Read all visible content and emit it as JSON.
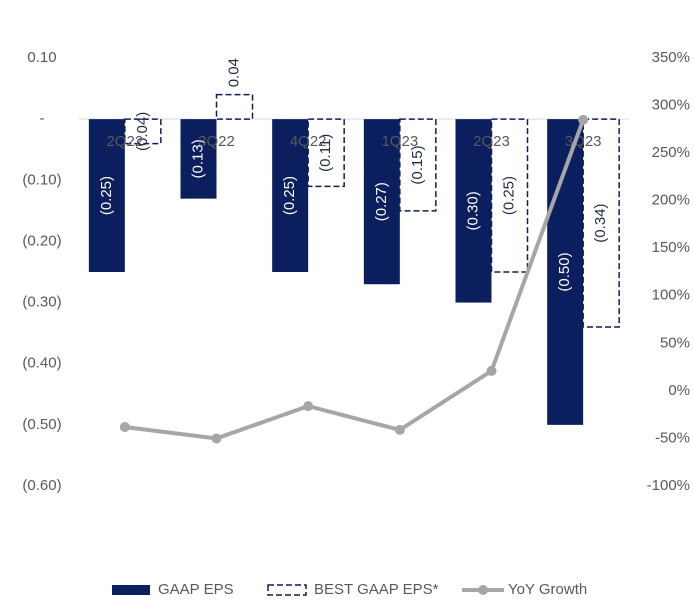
{
  "chart_data": {
    "type": "bar",
    "categories": [
      "2Q22",
      "3Q22",
      "4Q22",
      "1Q23",
      "2Q23",
      "3Q23"
    ],
    "series": [
      {
        "name": "GAAP EPS",
        "color": "#0b1f5e",
        "values": [
          -0.25,
          -0.13,
          -0.25,
          -0.27,
          -0.3,
          -0.5
        ],
        "value_labels": [
          "(0.25)",
          "(0.13)",
          "(0.25)",
          "(0.27)",
          "(0.30)",
          "(0.50)"
        ]
      },
      {
        "name": "BEST GAAP EPS*",
        "color": "#0b1f5e",
        "style": "dashed",
        "values": [
          -0.04,
          0.04,
          -0.11,
          -0.15,
          -0.25,
          -0.34
        ],
        "value_labels": [
          "(0.04)",
          "0.04",
          "(0.11)",
          "(0.15)",
          "(0.25)",
          "(0.34)"
        ]
      },
      {
        "name": "YoY Growth",
        "color": "#a6a6a6",
        "type": "line",
        "axis": "y2",
        "values": [
          -38,
          -50,
          -16,
          -41,
          21,
          285
        ]
      }
    ],
    "ylim": [
      -0.6,
      0.1
    ],
    "yticks": [
      {
        "value": 0.1,
        "label": "0.10"
      },
      {
        "value": 0,
        "label": "-"
      },
      {
        "value": -0.1,
        "label": "(0.10)"
      },
      {
        "value": -0.2,
        "label": "(0.20)"
      },
      {
        "value": -0.3,
        "label": "(0.30)"
      },
      {
        "value": -0.4,
        "label": "(0.40)"
      },
      {
        "value": -0.5,
        "label": "(0.50)"
      },
      {
        "value": -0.6,
        "label": "(0.60)"
      }
    ],
    "y2lim": [
      -100,
      350
    ],
    "y2ticks": [
      {
        "value": 350,
        "label": "350%"
      },
      {
        "value": 300,
        "label": "300%"
      },
      {
        "value": 250,
        "label": "250%"
      },
      {
        "value": 200,
        "label": "200%"
      },
      {
        "value": 150,
        "label": "150%"
      },
      {
        "value": 100,
        "label": "100%"
      },
      {
        "value": 50,
        "label": "50%"
      },
      {
        "value": 0,
        "label": "0%"
      },
      {
        "value": -50,
        "label": "-50%"
      },
      {
        "value": -100,
        "label": "-100%"
      }
    ],
    "legend": "bottom"
  }
}
